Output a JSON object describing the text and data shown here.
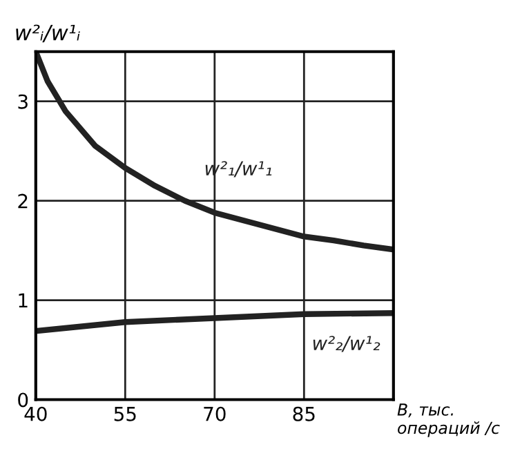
{
  "chart_data": {
    "type": "line",
    "ylabel": "w²ᵢ/w¹ᵢ",
    "xlabel": "B, тыс. операций /с",
    "xlim": [
      40,
      100
    ],
    "xticks": [
      40,
      55,
      70,
      85
    ],
    "ylim": [
      0,
      3.5
    ],
    "yticks": [
      0,
      1,
      2,
      3
    ],
    "grid": true,
    "marker": "none",
    "line_style": "solid",
    "series": [
      {
        "name": "w²₁/w¹₁",
        "color": "#222222",
        "x": [
          40,
          42,
          44,
          45,
          50,
          55,
          60,
          65,
          70,
          75,
          80,
          85,
          90,
          95,
          100
        ],
        "values": [
          3.5,
          3.2,
          3.0,
          2.9,
          2.55,
          2.33,
          2.15,
          2.0,
          1.88,
          1.8,
          1.72,
          1.64,
          1.6,
          1.55,
          1.51
        ]
      },
      {
        "name": "w²₂/w¹₂",
        "color": "#222222",
        "x": [
          40,
          55,
          70,
          85,
          100
        ],
        "values": [
          0.69,
          0.78,
          0.82,
          0.86,
          0.87
        ]
      }
    ]
  }
}
